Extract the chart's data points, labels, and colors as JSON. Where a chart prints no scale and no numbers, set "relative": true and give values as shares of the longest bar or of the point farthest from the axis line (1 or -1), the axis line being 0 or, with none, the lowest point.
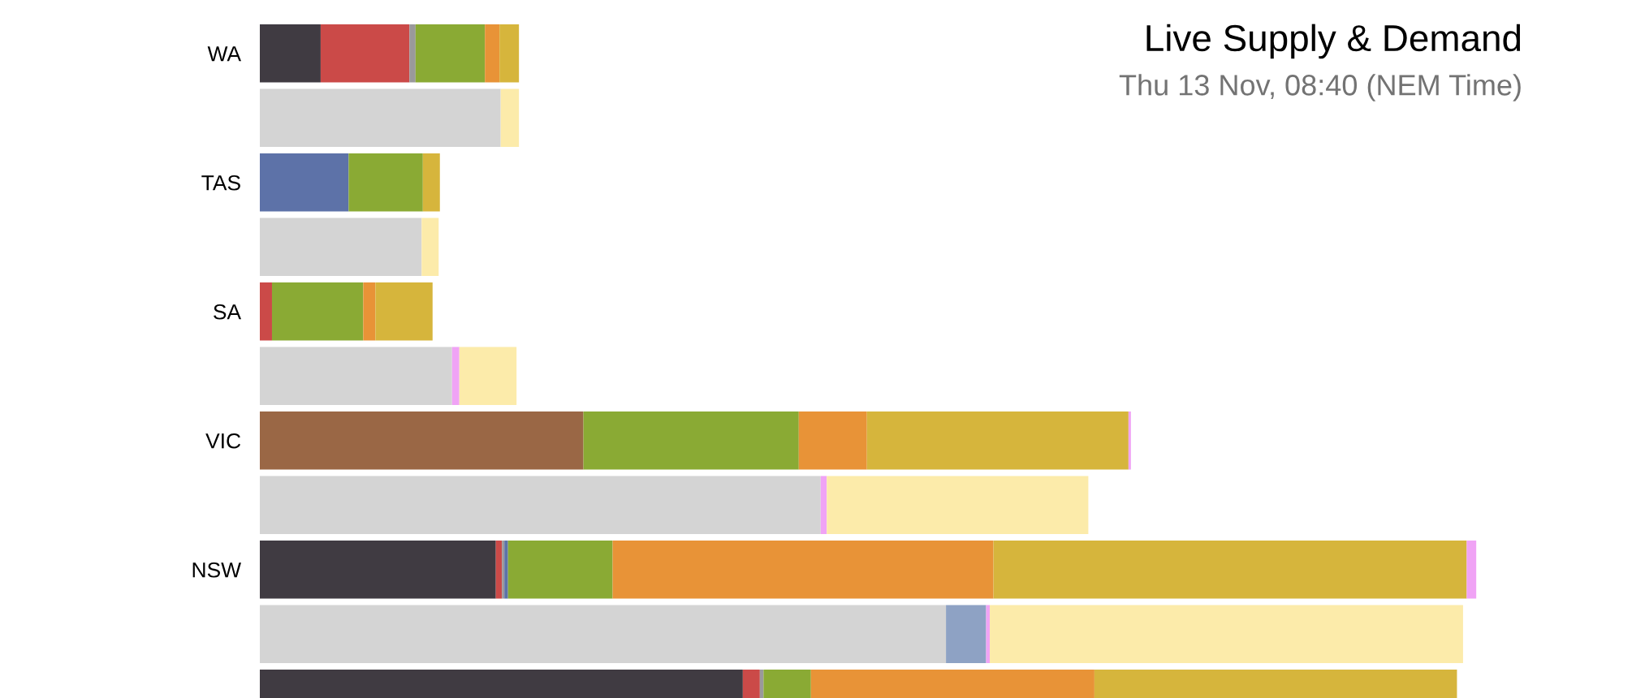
{
  "chart_data": {
    "type": "bar",
    "title": "Live Supply & Demand",
    "subtitle": "Thu 13 Nov, 08:40 (NEM Time)",
    "orientation": "horizontal",
    "stacked": true,
    "relative": true,
    "categories": [
      "WA",
      null,
      "TAS",
      null,
      "SA",
      null,
      "VIC",
      null,
      "NSW",
      null,
      null
    ],
    "series": [
      {
        "color": "#403b42",
        "values": [
          0.05,
          null,
          null,
          null,
          null,
          null,
          null,
          null,
          0.194,
          null,
          0.397
        ]
      },
      {
        "color": "#9a6745",
        "values": [
          null,
          null,
          null,
          null,
          null,
          null,
          0.266,
          null,
          null,
          null,
          null
        ]
      },
      {
        "color": "#cb4a48",
        "values": [
          0.073,
          null,
          null,
          null,
          0.01,
          null,
          null,
          null,
          0.005,
          null,
          0.014
        ]
      },
      {
        "color": "#9a999b",
        "values": [
          0.005,
          null,
          null,
          null,
          null,
          null,
          null,
          null,
          0.002,
          null,
          0.003
        ]
      },
      {
        "color": "#5d72a8",
        "values": [
          null,
          null,
          0.073,
          null,
          null,
          null,
          null,
          null,
          0.003,
          null,
          null
        ]
      },
      {
        "color": "#8aaa34",
        "values": [
          0.057,
          null,
          0.061,
          null,
          0.075,
          null,
          0.177,
          null,
          0.086,
          null,
          0.039
        ]
      },
      {
        "color": "#e89337",
        "values": [
          0.012,
          null,
          null,
          null,
          0.01,
          null,
          0.056,
          null,
          0.313,
          null,
          0.233
        ]
      },
      {
        "color": "#d6b53c",
        "values": [
          0.016,
          null,
          0.014,
          null,
          0.047,
          null,
          0.215,
          null,
          0.389,
          null,
          0.298
        ]
      },
      {
        "color": "#f0a3f5",
        "values": [
          null,
          null,
          null,
          null,
          null,
          null,
          0.002,
          null,
          0.008,
          null,
          null
        ]
      },
      {
        "color": "#d4d4d4",
        "values": [
          null,
          0.198,
          null,
          0.133,
          null,
          0.158,
          null,
          0.461,
          null,
          0.564,
          null
        ]
      },
      {
        "color": "#8ea2c4",
        "values": [
          null,
          null,
          null,
          null,
          null,
          null,
          null,
          null,
          null,
          0.033,
          null
        ]
      },
      {
        "color": "#f0a3f5",
        "values": [
          null,
          null,
          null,
          null,
          null,
          0.006,
          null,
          0.005,
          null,
          0.003,
          null
        ]
      },
      {
        "color": "#fcebaa",
        "values": [
          null,
          0.015,
          null,
          0.014,
          null,
          0.047,
          null,
          0.215,
          null,
          0.389,
          null
        ]
      }
    ]
  }
}
